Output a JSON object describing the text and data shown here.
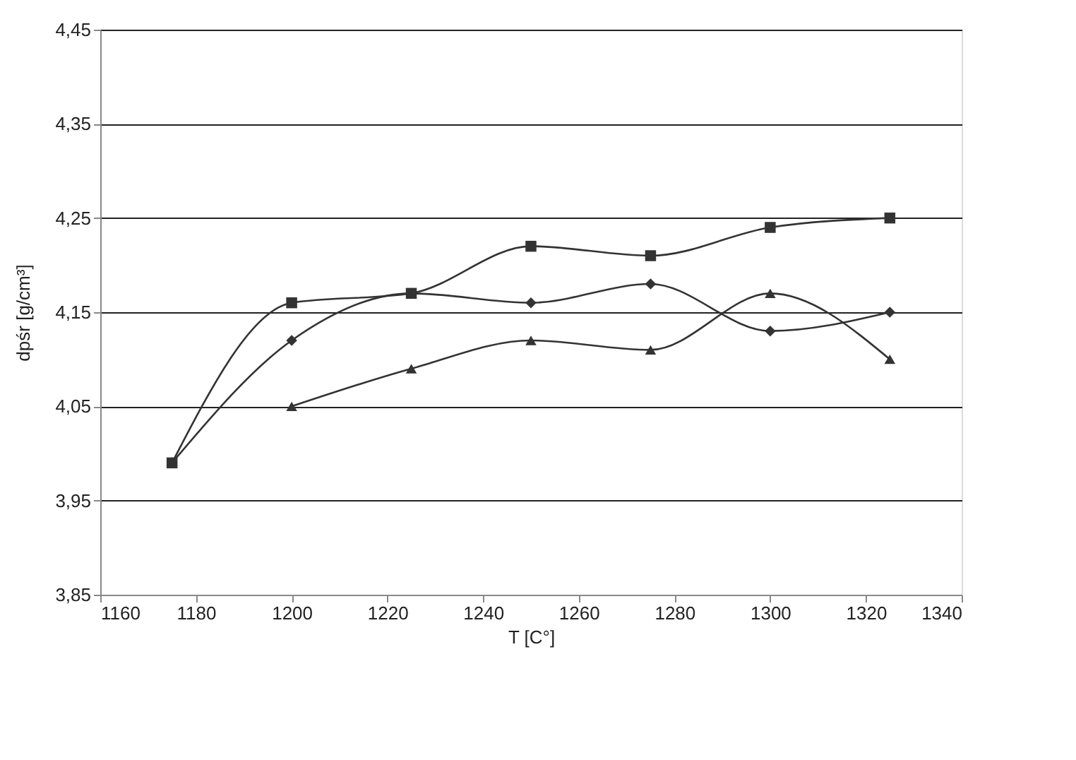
{
  "chart_data": {
    "type": "line",
    "xlabel": "T [C°]",
    "ylabel": "dpśr [g/cm³]",
    "x": [
      1175,
      1200,
      1225,
      1250,
      1275,
      1300,
      1325
    ],
    "series": [
      {
        "color": "#333333",
        "marker": "diamond",
        "values": [
          3.99,
          4.12,
          4.17,
          4.16,
          4.18,
          4.13,
          4.15
        ]
      },
      {
        "color": "#333333",
        "marker": "square",
        "values": [
          3.99,
          4.16,
          4.17,
          4.22,
          4.21,
          4.24,
          4.25
        ]
      },
      {
        "color": "#333333",
        "marker": "triangle",
        "values": [
          null,
          4.05,
          4.09,
          4.12,
          4.11,
          4.17,
          4.1
        ]
      }
    ],
    "xlim": [
      1160,
      1340
    ],
    "xticks": [
      1160,
      1180,
      1200,
      1220,
      1240,
      1260,
      1280,
      1300,
      1320,
      1340
    ],
    "ylim": [
      3.85,
      4.45
    ],
    "yticks": [
      {
        "value": 3.85,
        "label": "3,85"
      },
      {
        "value": 3.95,
        "label": "3,95"
      },
      {
        "value": 4.05,
        "label": "4,05"
      },
      {
        "value": 4.15,
        "label": "4,15"
      },
      {
        "value": 4.25,
        "label": "4,25"
      },
      {
        "value": 4.35,
        "label": "4,35"
      },
      {
        "value": 4.45,
        "label": "4,45"
      }
    ],
    "grid": "y",
    "line_style": "solid"
  }
}
